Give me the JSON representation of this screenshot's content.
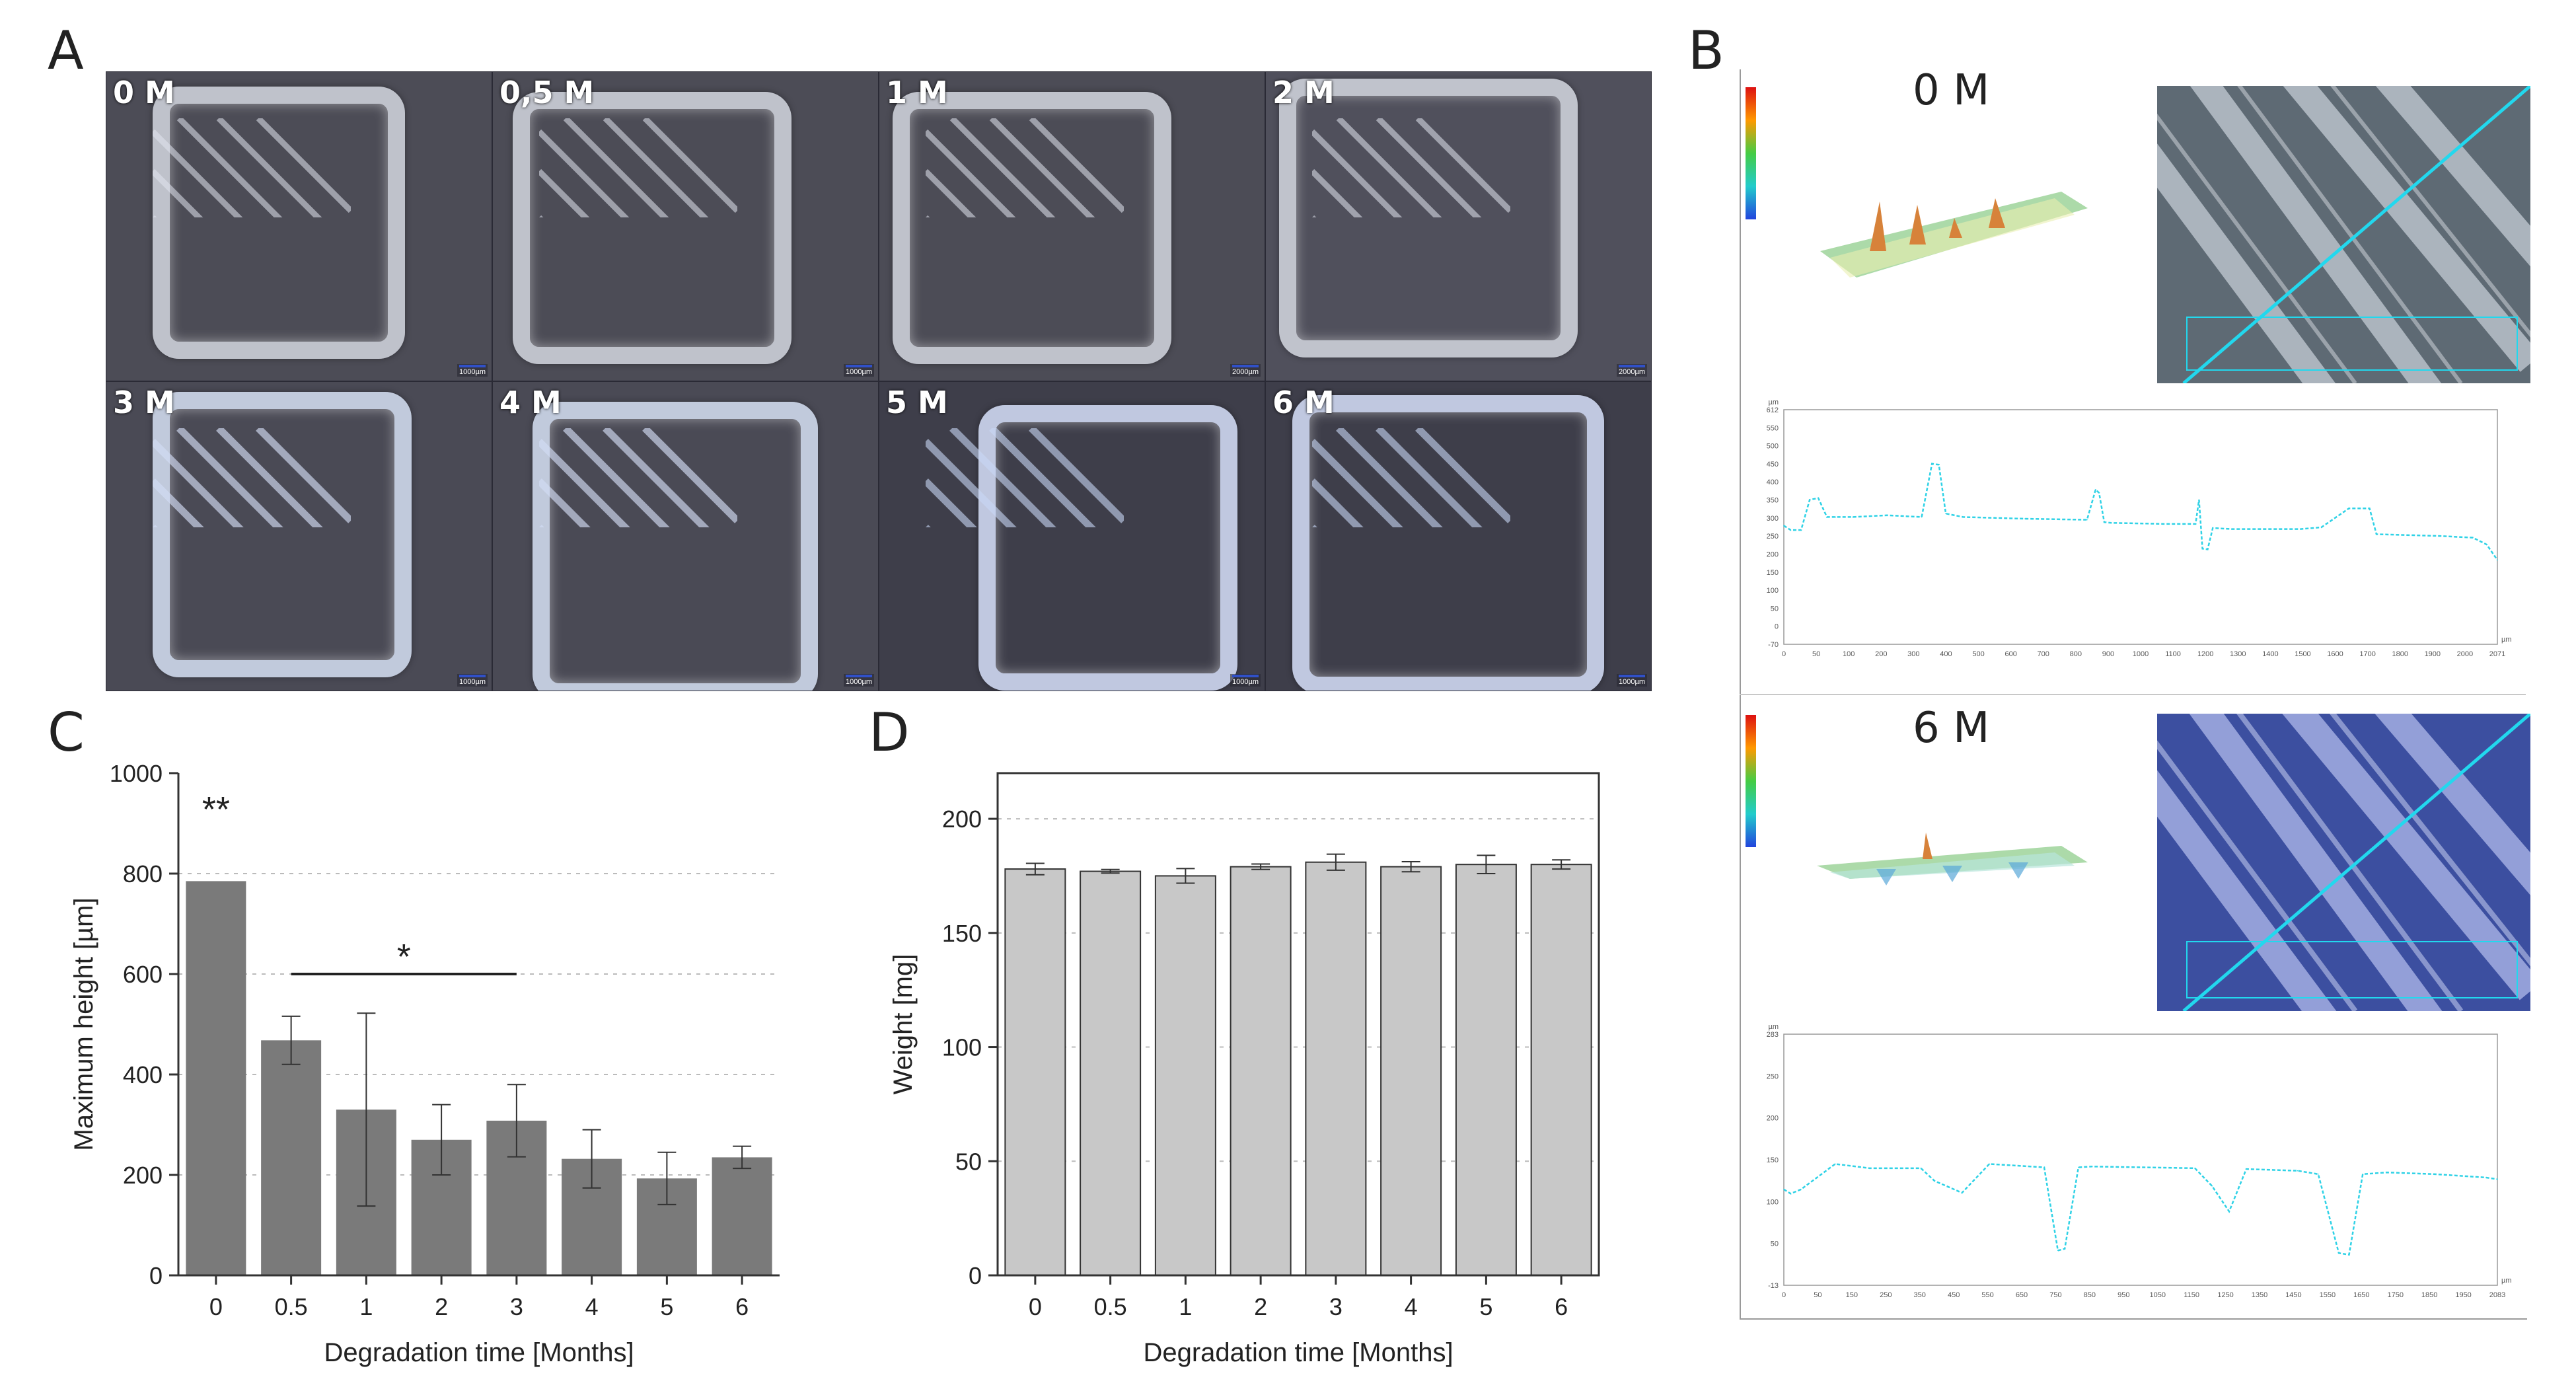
{
  "panel_letters": {
    "a": "A",
    "b": "B",
    "c": "C",
    "d": "D"
  },
  "panel_a": {
    "tiles": [
      {
        "label": "0 M",
        "scale": "1000µm"
      },
      {
        "label": "0,5 M",
        "scale": "1000µm"
      },
      {
        "label": "1 M",
        "scale": "2000µm"
      },
      {
        "label": "2 M",
        "scale": "2000µm"
      },
      {
        "label": "3 M",
        "scale": "1000µm"
      },
      {
        "label": "4 M",
        "scale": "1000µm"
      },
      {
        "label": "5 M",
        "scale": "1000µm"
      },
      {
        "label": "6 M",
        "scale": "1000µm"
      }
    ]
  },
  "panel_b": {
    "top_title": "0 M",
    "bottom_title": "6 M",
    "colors": {
      "profile": "#2fd2e6",
      "cross_line": "#22d8ee"
    }
  },
  "chart_data": [
    {
      "id": "C",
      "type": "bar",
      "xlabel": "Degradation time [Months]",
      "ylabel": "Maximum height [µm]",
      "categories": [
        "0",
        "0.5",
        "1",
        "2",
        "3",
        "4",
        "5",
        "6"
      ],
      "values": [
        785,
        468,
        330,
        270,
        308,
        232,
        193,
        235
      ],
      "errors": [
        0,
        48,
        192,
        70,
        72,
        58,
        52,
        22
      ],
      "ylim": [
        0,
        1000
      ],
      "yticks": [
        "0",
        "200",
        "400",
        "600",
        "800",
        "1000"
      ],
      "gridlines": [
        200,
        400,
        600,
        800
      ],
      "bar_color": "#7a7a7a",
      "annotations": [
        {
          "text": "**",
          "category": "0",
          "y": 930
        },
        {
          "text": "*",
          "category_from": "0.5",
          "category_to": "3",
          "y": 600
        }
      ]
    },
    {
      "id": "D",
      "type": "bar",
      "xlabel": "Degradation time [Months]",
      "ylabel": "Weight [mg]",
      "categories": [
        "0",
        "0.5",
        "1",
        "2",
        "3",
        "4",
        "5",
        "6"
      ],
      "values": [
        178,
        177,
        175,
        179,
        181,
        179,
        180,
        180
      ],
      "errors": [
        2.5,
        0.8,
        3.2,
        1.2,
        3.5,
        2.2,
        4.0,
        2.0
      ],
      "ylim": [
        0,
        220
      ],
      "yticks": [
        "0",
        "50",
        "100",
        "150",
        "200"
      ],
      "gridlines": [
        50,
        100,
        150,
        200
      ],
      "bar_color": "#c8c8c8"
    },
    {
      "id": "B-0M",
      "type": "line",
      "x": [
        0,
        20,
        50,
        75,
        100,
        125,
        150,
        200,
        300,
        400,
        430,
        450,
        470,
        520,
        700,
        880,
        905,
        915,
        930,
        950,
        1100,
        1195,
        1205,
        1215,
        1230,
        1245,
        1300,
        1500,
        1560,
        1640,
        1700,
        1720,
        1900,
        2000,
        2040,
        2071
      ],
      "values": [
        275,
        262,
        262,
        350,
        355,
        300,
        300,
        300,
        305,
        300,
        455,
        452,
        310,
        300,
        295,
        292,
        380,
        370,
        285,
        283,
        280,
        280,
        350,
        208,
        206,
        268,
        265,
        265,
        270,
        325,
        325,
        250,
        245,
        240,
        220,
        175
      ],
      "xticks": [
        "0",
        "50",
        "100",
        "200",
        "300",
        "400",
        "500",
        "600",
        "700",
        "800",
        "900",
        "1000",
        "1100",
        "1200",
        "1300",
        "1400",
        "1500",
        "1600",
        "1700",
        "1800",
        "1900",
        "2000",
        "2071"
      ],
      "yticks": [
        "-70",
        "0",
        "50",
        "100",
        "150",
        "200",
        "250",
        "300",
        "350",
        "400",
        "450",
        "500",
        "550",
        "612"
      ],
      "xlim": [
        0,
        2071
      ],
      "ylim": [
        -70,
        612
      ],
      "xunit": "µm",
      "yunit": "µm"
    },
    {
      "id": "B-6M",
      "type": "line",
      "x": [
        0,
        20,
        50,
        150,
        250,
        400,
        440,
        520,
        600,
        760,
        800,
        820,
        860,
        900,
        1050,
        1200,
        1250,
        1300,
        1350,
        1500,
        1560,
        1620,
        1650,
        1690,
        1760,
        1900,
        2050,
        2083
      ],
      "values": [
        100,
        95,
        100,
        130,
        125,
        125,
        110,
        96,
        130,
        126,
        28,
        30,
        126,
        127,
        126,
        125,
        104,
        74,
        124,
        122,
        118,
        25,
        23,
        118,
        120,
        118,
        114,
        112
      ],
      "xticks": [
        "0",
        "50",
        "150",
        "250",
        "350",
        "450",
        "550",
        "650",
        "750",
        "850",
        "950",
        "1050",
        "1150",
        "1250",
        "1350",
        "1450",
        "1550",
        "1650",
        "1750",
        "1850",
        "1950",
        "2083"
      ],
      "yticks": [
        "-13",
        "50",
        "100",
        "150",
        "200",
        "250",
        "283"
      ],
      "xlim": [
        0,
        2083
      ],
      "ylim": [
        -13,
        283
      ],
      "xunit": "µm",
      "yunit": "µm"
    }
  ]
}
